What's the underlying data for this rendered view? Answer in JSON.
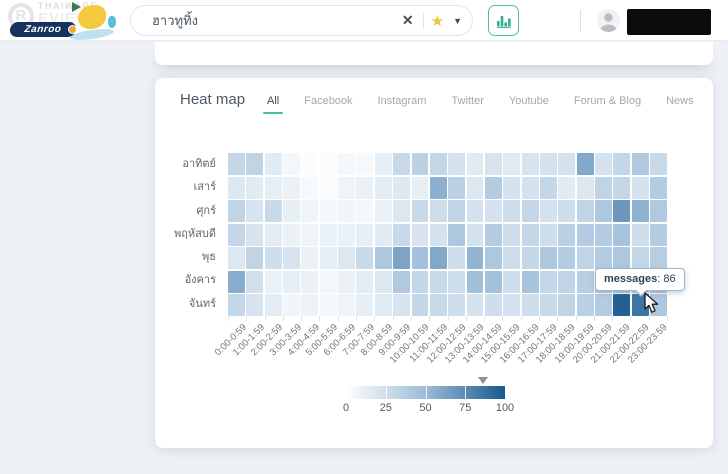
{
  "header": {
    "watermark": {
      "line1": "THAIWARE",
      "letter": "R",
      "line2": "EVIEW"
    },
    "brand": "Zanroo",
    "search": {
      "value": "ฮาวทูทิ้ง"
    }
  },
  "card": {
    "title": "Heat map",
    "tabs": [
      {
        "label": "All",
        "active": true
      },
      {
        "label": "Facebook",
        "active": false
      },
      {
        "label": "Instagram",
        "active": false
      },
      {
        "label": "Twitter",
        "active": false
      },
      {
        "label": "Youtube",
        "active": false
      },
      {
        "label": "Forum & Blog",
        "active": false
      },
      {
        "label": "News",
        "active": false
      }
    ]
  },
  "chart_data": {
    "type": "heatmap",
    "title": "Heat map",
    "x_labels": [
      "0:00-0:59",
      "1:00-1:59",
      "2:00-2:59",
      "3:00-3:59",
      "4:00-4:59",
      "5:00-5:59",
      "6:00-6:59",
      "7:00-7:59",
      "8:00-8:59",
      "9:00-9:59",
      "10:00-10:59",
      "11:00-11:59",
      "12:00-12:59",
      "13:00-13:59",
      "14:00-14:59",
      "15:00-15:59",
      "16:00-16:59",
      "17:00-17:59",
      "18:00-18:59",
      "19:00-19:59",
      "20:00-20:59",
      "21:00-21:59",
      "22:00-22:59",
      "23:00-23:59"
    ],
    "y_labels": [
      "อาทิตย์",
      "เสาร์",
      "ศุกร์",
      "พฤหัสบดี",
      "พุธ",
      "อังคาร",
      "จันทร์"
    ],
    "values": [
      [
        30,
        32,
        15,
        6,
        2,
        3,
        5,
        4,
        12,
        28,
        34,
        30,
        22,
        15,
        20,
        15,
        20,
        22,
        22,
        60,
        22,
        30,
        40,
        28
      ],
      [
        18,
        15,
        13,
        10,
        4,
        3,
        8,
        11,
        14,
        17,
        13,
        56,
        35,
        18,
        38,
        22,
        22,
        30,
        15,
        18,
        32,
        30,
        22,
        38
      ],
      [
        32,
        20,
        28,
        12,
        8,
        5,
        7,
        5,
        10,
        18,
        28,
        26,
        32,
        22,
        22,
        25,
        30,
        22,
        25,
        32,
        42,
        68,
        55,
        40
      ],
      [
        30,
        20,
        14,
        10,
        8,
        10,
        10,
        12,
        15,
        28,
        20,
        22,
        42,
        22,
        38,
        25,
        30,
        25,
        35,
        38,
        38,
        45,
        25,
        38
      ],
      [
        18,
        32,
        25,
        20,
        10,
        12,
        18,
        28,
        42,
        62,
        46,
        60,
        25,
        54,
        42,
        26,
        30,
        42,
        38,
        32,
        38,
        42,
        30,
        36
      ],
      [
        58,
        24,
        10,
        12,
        10,
        6,
        10,
        14,
        18,
        40,
        30,
        28,
        25,
        48,
        46,
        25,
        44,
        30,
        32,
        36,
        35,
        40,
        35,
        40
      ],
      [
        30,
        20,
        14,
        7,
        9,
        6,
        8,
        12,
        16,
        20,
        30,
        28,
        25,
        22,
        25,
        22,
        25,
        28,
        32,
        35,
        38,
        96,
        86,
        42
      ]
    ],
    "value_range": [
      0,
      100
    ],
    "legend_ticks": [
      0,
      25,
      50,
      75,
      100
    ],
    "legend_marker_value": 86,
    "colors": {
      "min": "#ffffff",
      "mid": "#9cbcd8",
      "max": "#19598e"
    },
    "tooltip": {
      "label": "messages",
      "value": 86
    }
  }
}
